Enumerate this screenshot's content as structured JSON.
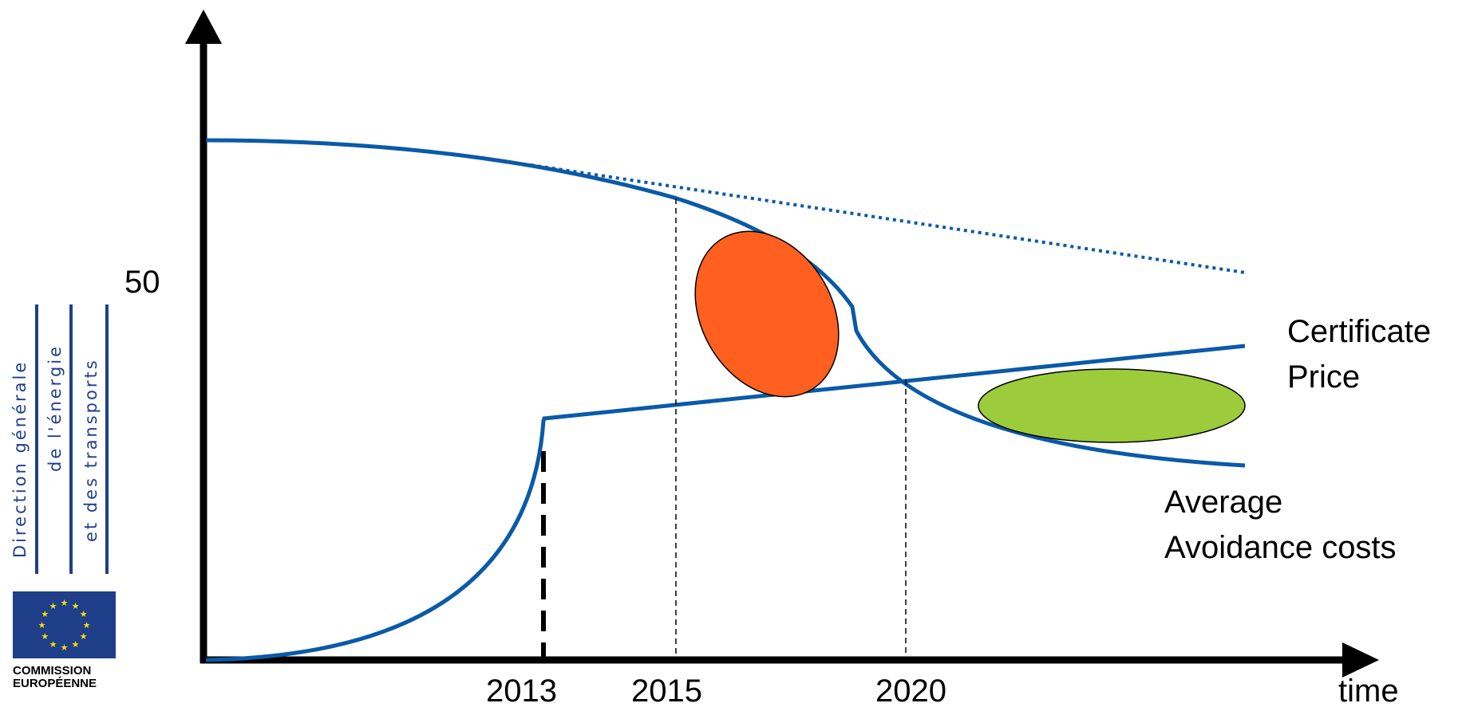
{
  "axis": {
    "y_tick_label": "50",
    "x_ticks": [
      "2013",
      "2015",
      "2020"
    ],
    "x_label": "time"
  },
  "curves": {
    "certificate_price_label_line1": "Certificate",
    "certificate_price_label_line2": "Price",
    "avoidance_costs_label_line1": "Average",
    "avoidance_costs_label_line2": "Avoidance costs"
  },
  "sidebar": {
    "line1": "Direction générale",
    "line2": "de l'énergie",
    "line3": "et des transports",
    "logo_text_line1": "COMMISSION",
    "logo_text_line2": "EUROPÉENNE"
  },
  "colors": {
    "curve_blue": "#0a5aa8",
    "orange_region": "#ff5f1f",
    "green_region": "#9ccb3b",
    "eu_blue": "#1f3f8a",
    "eu_star": "#ffdd00"
  }
}
